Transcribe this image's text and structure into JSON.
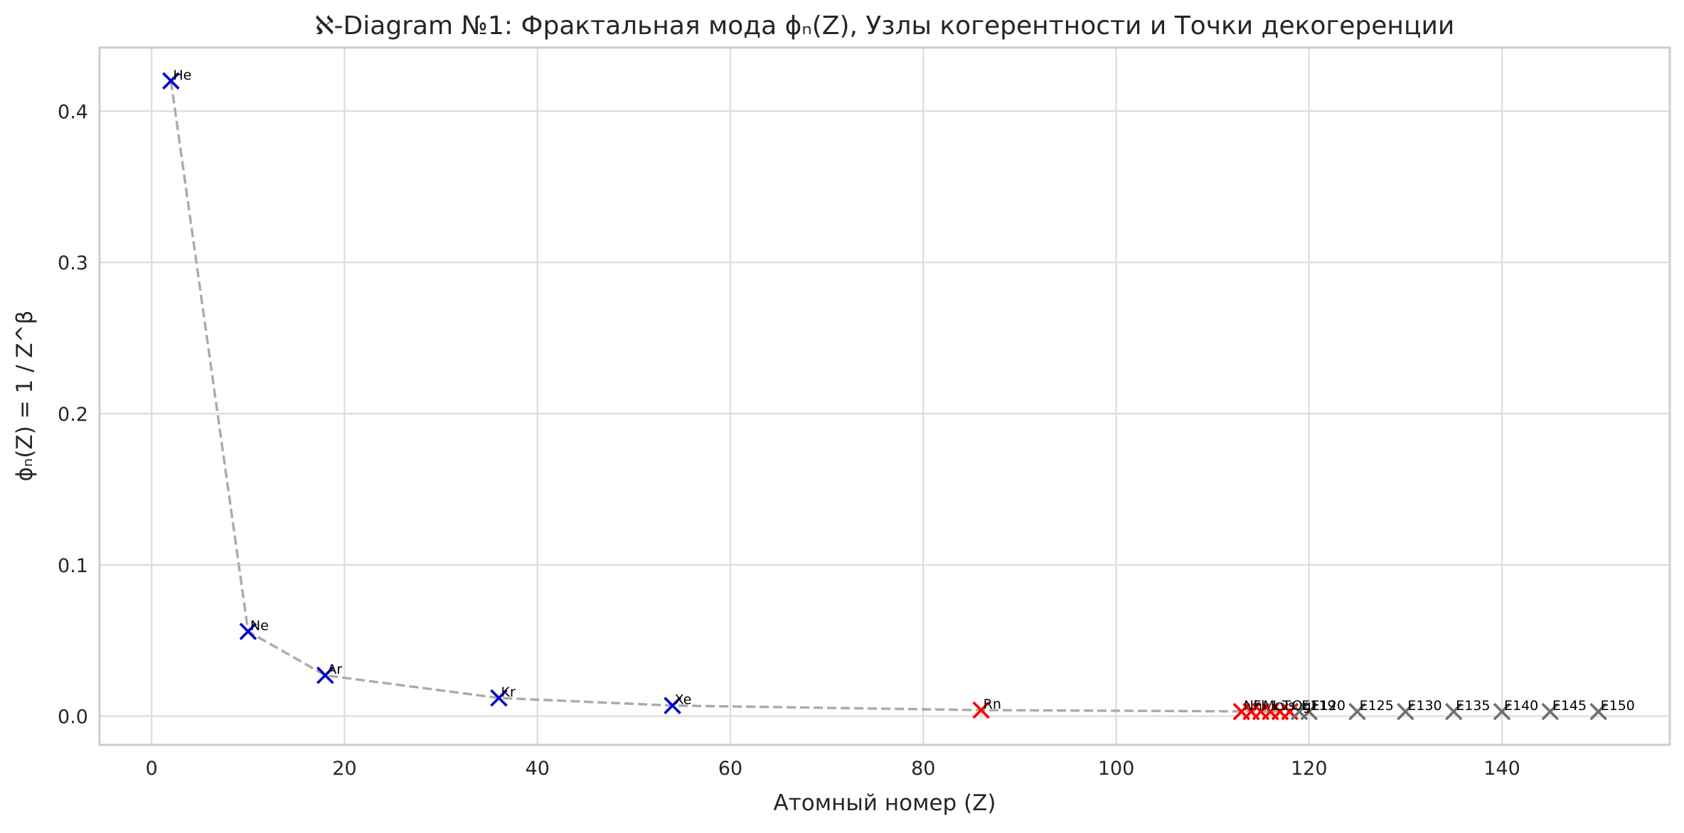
{
  "chart_data": {
    "type": "scatter",
    "title": "ℵ-Diagram №1: Фрактальная мода ϕₙ(Z), Узлы когерентности и Точки декогеренции",
    "xlabel": "Атомный номер (Z)",
    "ylabel": "ϕₙ(Z) = 1 / Z^β",
    "xlim": [
      -5.4,
      157.4
    ],
    "ylim": [
      -0.019,
      0.442
    ],
    "xticks": [
      0,
      20,
      40,
      60,
      80,
      100,
      120,
      140
    ],
    "yticks": [
      0.0,
      0.1,
      0.2,
      0.3,
      0.4
    ],
    "xtick_labels": [
      "0",
      "20",
      "40",
      "60",
      "80",
      "100",
      "120",
      "140"
    ],
    "ytick_labels": [
      "0.0",
      "0.1",
      "0.2",
      "0.3",
      "0.4"
    ],
    "grid": true,
    "legend": "none",
    "colors": {
      "coherence_node": "#0000cc",
      "decoherence_point": "#ff0000",
      "hypothetical": "#707070",
      "trend_line": "#aaaaaa"
    },
    "series": [
      {
        "marker": "x",
        "color": "#0000cc",
        "points": [
          {
            "label": "He",
            "x": 2,
            "y": 0.42
          },
          {
            "label": "Ne",
            "x": 10,
            "y": 0.056
          },
          {
            "label": "Ar",
            "x": 18,
            "y": 0.027
          },
          {
            "label": "Kr",
            "x": 36,
            "y": 0.012
          },
          {
            "label": "Xe",
            "x": 54,
            "y": 0.007
          }
        ]
      },
      {
        "marker": "x",
        "color": "#ff0000",
        "points": [
          {
            "label": "Rn",
            "x": 86,
            "y": 0.004
          },
          {
            "label": "Nh",
            "x": 113,
            "y": 0.003
          },
          {
            "label": "Fl",
            "x": 114,
            "y": 0.003
          },
          {
            "label": "Mc",
            "x": 115,
            "y": 0.003
          },
          {
            "label": "Lv",
            "x": 116,
            "y": 0.003
          },
          {
            "label": "Ts",
            "x": 117,
            "y": 0.003
          },
          {
            "label": "Og",
            "x": 118,
            "y": 0.003
          }
        ]
      },
      {
        "marker": "x",
        "color": "#707070",
        "points": [
          {
            "label": "E119",
            "x": 119,
            "y": 0.003
          },
          {
            "label": "E120",
            "x": 120,
            "y": 0.003
          },
          {
            "label": "E125",
            "x": 125,
            "y": 0.003
          },
          {
            "label": "E130",
            "x": 130,
            "y": 0.003
          },
          {
            "label": "E135",
            "x": 135,
            "y": 0.003
          },
          {
            "label": "E140",
            "x": 140,
            "y": 0.003
          },
          {
            "label": "E145",
            "x": 145,
            "y": 0.003
          },
          {
            "label": "E150",
            "x": 150,
            "y": 0.003
          }
        ]
      }
    ],
    "trend_line": {
      "style": "dashed",
      "color": "#aaaaaa",
      "x": [
        2,
        10,
        18,
        36,
        54,
        86,
        118
      ],
      "y": [
        0.42,
        0.056,
        0.027,
        0.012,
        0.007,
        0.004,
        0.003
      ]
    }
  }
}
